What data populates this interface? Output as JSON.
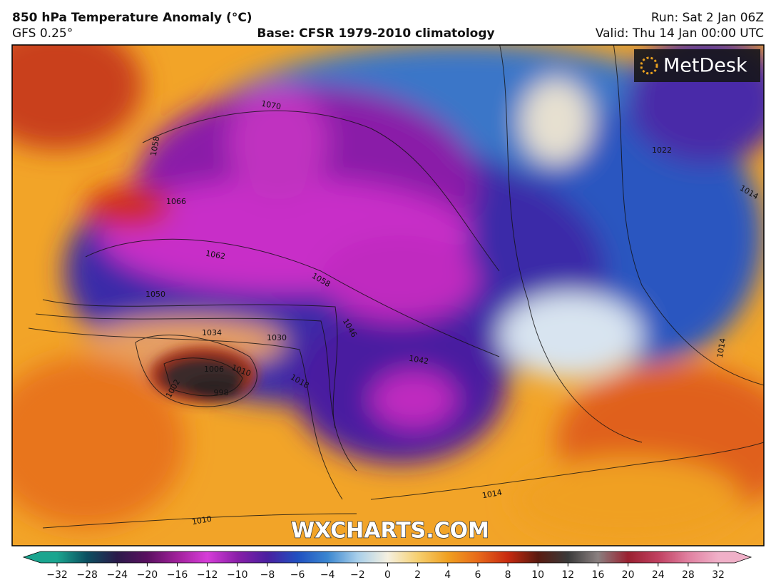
{
  "header": {
    "title": "850 hPa Temperature Anomaly (°C)",
    "model": "GFS 0.25°",
    "base": "Base: CFSR 1979-2010 climatology",
    "run": "Run: Sat 2 Jan 06Z",
    "valid": "Valid: Thu 14 Jan 00:00 UTC"
  },
  "logo": "MetDesk",
  "watermark": "WXCHARTS.COM",
  "map": {
    "isobar_labels": [
      1058,
      1066,
      1070,
      1062,
      1058,
      1050,
      1034,
      1030,
      1018,
      1006,
      1010,
      998,
      1002,
      1046,
      1042,
      1022,
      1014,
      1014,
      1014,
      1010
    ]
  },
  "colorbar": {
    "ticks": [
      {
        "value": -32,
        "label": "−32"
      },
      {
        "value": -28,
        "label": "−28"
      },
      {
        "value": -24,
        "label": "−24"
      },
      {
        "value": -20,
        "label": "−20"
      },
      {
        "value": -16,
        "label": "−16"
      },
      {
        "value": -12,
        "label": "−12"
      },
      {
        "value": -10,
        "label": "−10"
      },
      {
        "value": -8,
        "label": "−8"
      },
      {
        "value": -6,
        "label": "−6"
      },
      {
        "value": -4,
        "label": "−4"
      },
      {
        "value": -2,
        "label": "−2"
      },
      0,
      2,
      4,
      6,
      8,
      10,
      12,
      16,
      20,
      24,
      28,
      32
    ],
    "colors": [
      "#1aa58f",
      "#0c4f60",
      "#2b1a4a",
      "#5a1060",
      "#a0209a",
      "#d63dd8",
      "#8a1fa8",
      "#4a1fa0",
      "#2050c0",
      "#3a86d0",
      "#a8cfea",
      "#f5f0e0",
      "#f6d070",
      "#f0a020",
      "#e86a1a",
      "#c82a10",
      "#5a1a10",
      "#3a3a3a",
      "#8a8080",
      "#9a2030",
      "#c04060",
      "#e080a0",
      "#f0b0c8"
    ]
  }
}
